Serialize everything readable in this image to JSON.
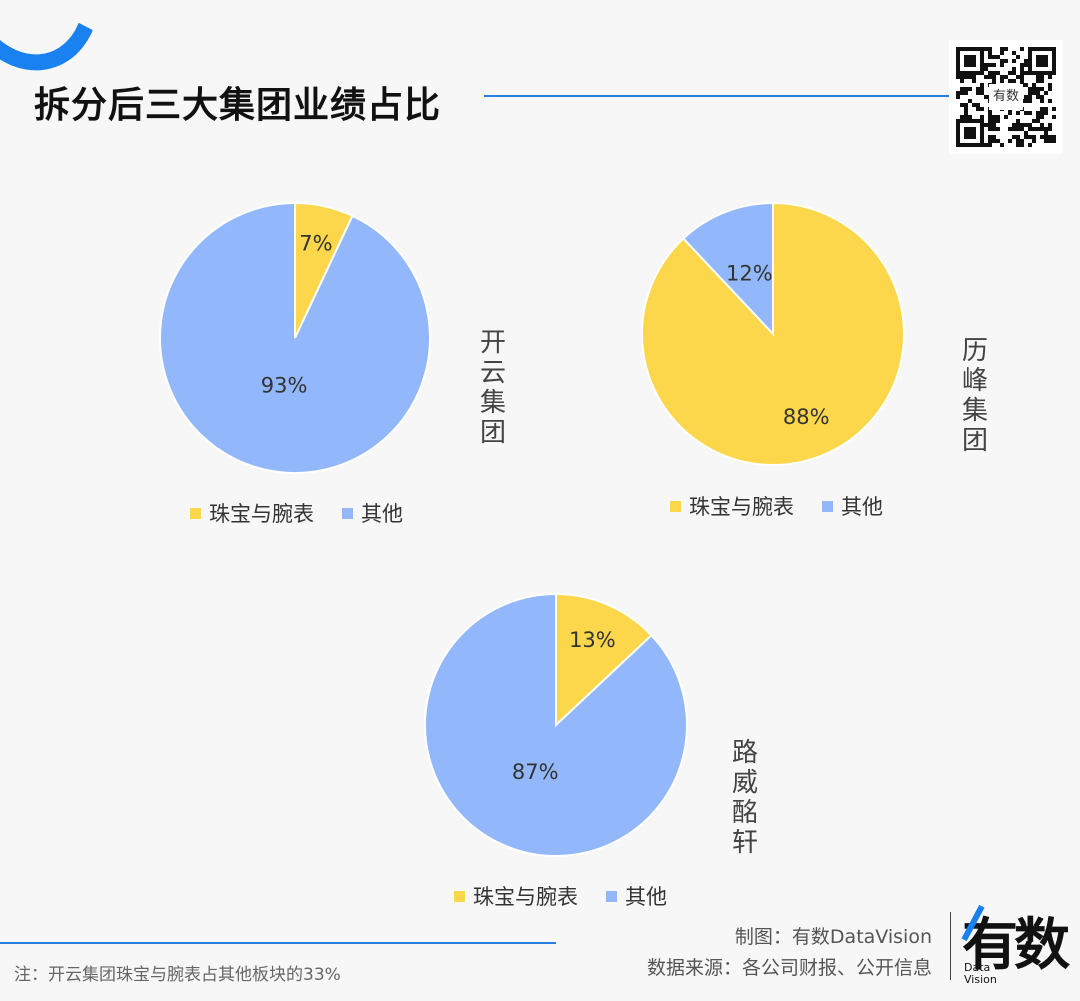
{
  "title": "拆分后三大集团业绩占比",
  "colors": {
    "accent": "#1a82f0",
    "yellow": "#fcd74c",
    "blue": "#92b8fb"
  },
  "qr_label": "有数",
  "chart_data": [
    {
      "type": "pie",
      "title": "开云集团",
      "categories": [
        "珠宝与腕表",
        "其他"
      ],
      "values": [
        7,
        93
      ],
      "labels": [
        "7%",
        "93%"
      ],
      "legend": [
        "珠宝与腕表",
        "其他"
      ],
      "legend_position": "bottom"
    },
    {
      "type": "pie",
      "title": "历峰集团",
      "categories": [
        "珠宝与腕表",
        "其他"
      ],
      "values": [
        88,
        12
      ],
      "labels": [
        "88%",
        "12%"
      ],
      "legend": [
        "珠宝与腕表",
        "其他"
      ],
      "legend_position": "bottom"
    },
    {
      "type": "pie",
      "title": "路威酩轩",
      "categories": [
        "珠宝与腕表",
        "其他"
      ],
      "values": [
        13,
        87
      ],
      "labels": [
        "13%",
        "87%"
      ],
      "legend": [
        "珠宝与腕表",
        "其他"
      ],
      "legend_position": "bottom"
    }
  ],
  "note": "注：开云集团珠宝与腕表占其他板块的33%",
  "credit_maker": "制图：有数DataVision",
  "credit_source": "数据来源：各公司财报、公开信息",
  "logo": {
    "main": "有数",
    "sub1": "Data",
    "sub2": "Vision"
  }
}
